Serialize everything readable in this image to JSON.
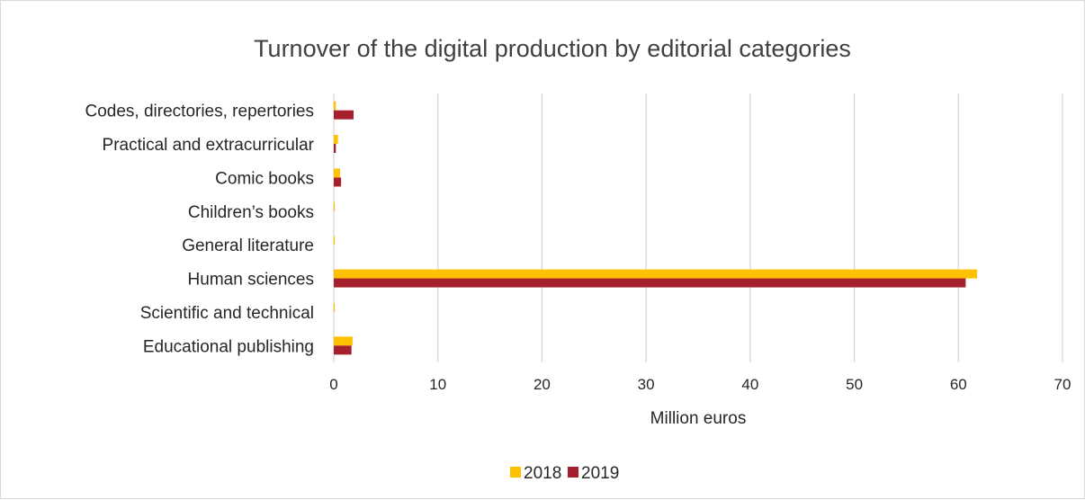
{
  "chart_data": {
    "type": "bar",
    "orientation": "horizontal",
    "title": "Turnover of the digital production by editorial categories",
    "xlabel": "Million euros",
    "ylabel": "",
    "xlim": [
      0,
      70
    ],
    "xticks": [
      "0",
      "10",
      "20",
      "30",
      "40",
      "50",
      "60",
      "70"
    ],
    "grid": true,
    "legend_position": "bottom",
    "categories": [
      "Codes, directories, repertories",
      "Practical and extracurricular",
      "Comic books",
      "Children’s books",
      "General literature",
      "Human sciences",
      "Scientific and technical",
      "Educational publishing"
    ],
    "series": [
      {
        "name": "2018",
        "color": "#FFC000",
        "values": [
          0.2,
          0.4,
          0.6,
          0.1,
          0.1,
          61.8,
          0.1,
          1.8
        ]
      },
      {
        "name": "2019",
        "color": "#A61F2D",
        "values": [
          1.9,
          0.2,
          0.7,
          0.0,
          0.0,
          60.7,
          0.0,
          1.7
        ]
      }
    ]
  }
}
